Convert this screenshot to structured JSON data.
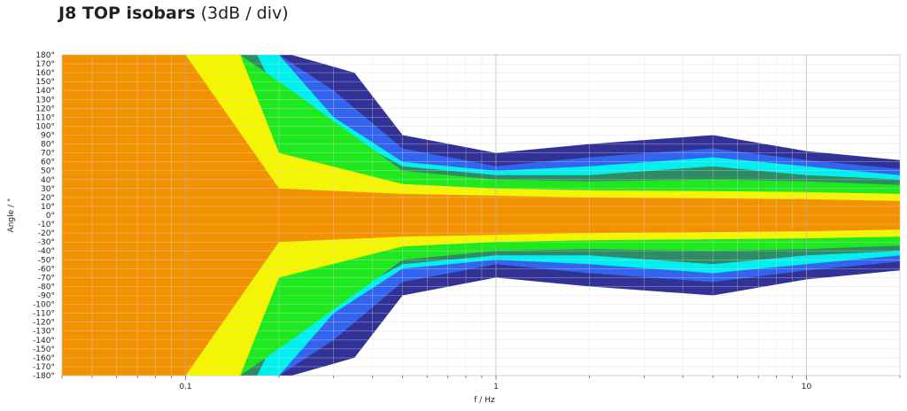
{
  "chart_data": {
    "type": "heatmap",
    "title": "J8 TOP isobars",
    "subtitle": "(3dB / div)",
    "xlabel": "f / Hz",
    "ylabel": "Angle / °",
    "x_scale": "log",
    "xlim": [
      0.04,
      20
    ],
    "ylim": [
      -180,
      180
    ],
    "x_ticks": [
      0.1,
      1,
      10
    ],
    "x_tick_labels": [
      "0.1",
      "1",
      "10"
    ],
    "y_ticks": [
      180,
      170,
      160,
      150,
      140,
      130,
      120,
      110,
      100,
      90,
      80,
      70,
      60,
      50,
      40,
      30,
      20,
      10,
      0,
      -10,
      -20,
      -30,
      -40,
      -50,
      -60,
      -70,
      -80,
      -90,
      -100,
      -110,
      -120,
      -130,
      -140,
      -150,
      -160,
      -170,
      -180
    ],
    "y_tick_labels": [
      "180°",
      "170°",
      "160°",
      "150°",
      "140°",
      "130°",
      "120°",
      "110°",
      "100°",
      "90°",
      "80°",
      "70°",
      "60°",
      "50°",
      "40°",
      "30°",
      "20°",
      "10°",
      "0°",
      "-10°",
      "-20°",
      "-30°",
      "-40°",
      "-50°",
      "-60°",
      "-70°",
      "-80°",
      "-90°",
      "-100°",
      "-110°",
      "-120°",
      "-130°",
      "-140°",
      "-150°",
      "-160°",
      "-170°",
      "-180°"
    ],
    "colors": [
      "#f39200",
      "#f5f500",
      "#1ee81e",
      "#2e8b64",
      "#00f0f0",
      "#3264f0",
      "#323296"
    ],
    "isobars": [
      {
        "level_db": -3,
        "color": "#f39200",
        "freq": [
          0.04,
          0.1,
          0.2,
          0.5,
          1,
          2,
          5,
          10,
          20
        ],
        "angle": [
          180,
          180,
          30,
          24,
          22,
          20,
          19,
          18,
          16
        ]
      },
      {
        "level_db": -6,
        "color": "#f5f500",
        "freq": [
          0.04,
          0.1,
          0.15,
          0.2,
          0.5,
          1,
          2,
          5,
          10,
          20
        ],
        "angle": [
          180,
          180,
          180,
          70,
          35,
          30,
          28,
          27,
          26,
          24
        ]
      },
      {
        "level_db": -9,
        "color": "#1ee81e",
        "freq": [
          0.04,
          0.15,
          0.2,
          0.5,
          1,
          2,
          5,
          10,
          20
        ],
        "angle": [
          180,
          180,
          150,
          50,
          40,
          38,
          40,
          38,
          34
        ]
      },
      {
        "level_db": -12,
        "color": "#2e8b64",
        "freq": [
          0.04,
          0.17,
          0.2,
          0.5,
          1,
          2,
          5,
          10,
          20
        ],
        "angle": [
          180,
          180,
          130,
          55,
          45,
          45,
          55,
          45,
          40
        ]
      },
      {
        "level_db": -15,
        "color": "#00f0f0",
        "freq": [
          0.04,
          0.2,
          0.3,
          0.5,
          1,
          2,
          5,
          10,
          20
        ],
        "angle": [
          180,
          180,
          110,
          60,
          50,
          55,
          65,
          55,
          45
        ]
      },
      {
        "level_db": -18,
        "color": "#3264f0",
        "freq": [
          0.04,
          0.2,
          0.3,
          0.5,
          1,
          2,
          5,
          10,
          20
        ],
        "angle": [
          180,
          180,
          140,
          75,
          55,
          65,
          75,
          62,
          52
        ]
      },
      {
        "level_db": -21,
        "color": "#323296",
        "freq": [
          0.04,
          0.22,
          0.35,
          0.5,
          1,
          2,
          5,
          10,
          20
        ],
        "angle": [
          180,
          180,
          160,
          90,
          70,
          80,
          90,
          72,
          62
        ]
      }
    ]
  }
}
